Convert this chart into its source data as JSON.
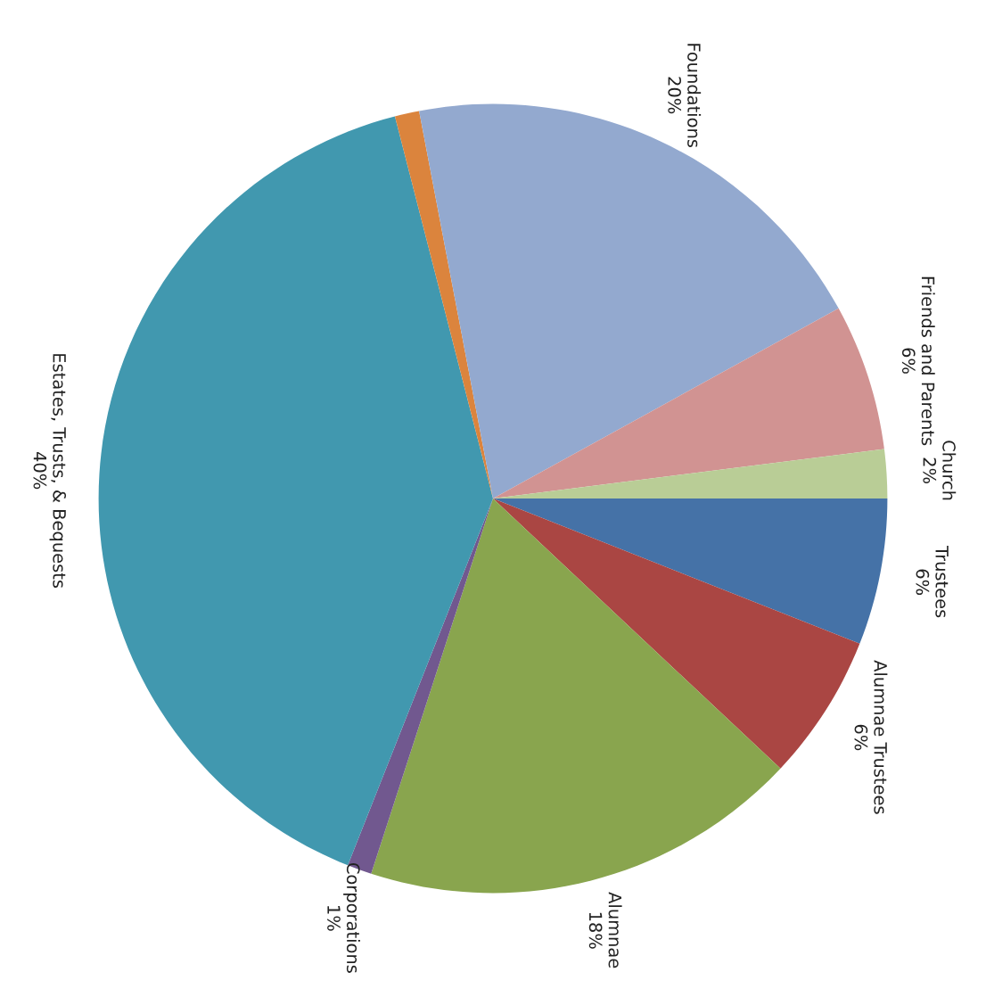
{
  "chart_data": {
    "type": "pie",
    "categories": [
      "Trustees",
      "Alumnae Trustees",
      "Alumnae",
      "Corporations",
      "Estates, Trusts, & Bequests",
      null,
      "Foundations",
      "Friends and Parents",
      "Church"
    ],
    "values": [
      6,
      6,
      18,
      1,
      40,
      1,
      20,
      6,
      2
    ],
    "value_labels": [
      "6%",
      "6%",
      "18%",
      "1%",
      "40%",
      null,
      "20%",
      "6%",
      "2%"
    ],
    "colors": [
      "#4572a7",
      "#aa4643",
      "#89a54e",
      "#71588f",
      "#4198af",
      "#db843d",
      "#93a9cf",
      "#d19392",
      "#b9cd96"
    ]
  }
}
